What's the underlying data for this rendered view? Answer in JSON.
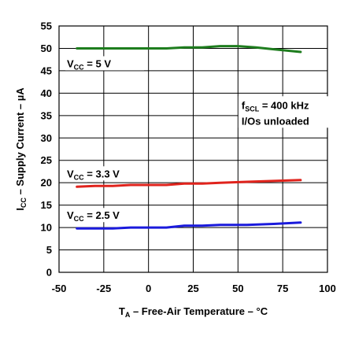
{
  "chart_data": {
    "type": "line",
    "xlabel": {
      "main": "T",
      "sub": "A",
      "rest": " – Free-Air Temperature – °C"
    },
    "ylabel": {
      "main": "I",
      "sub": "CC",
      "rest": " – Supply Current – µA"
    },
    "xlim": [
      -50,
      100
    ],
    "ylim": [
      0,
      55
    ],
    "xticks": [
      -50,
      -25,
      0,
      25,
      50,
      75,
      100
    ],
    "yticks": [
      0,
      5,
      10,
      15,
      20,
      25,
      30,
      35,
      40,
      45,
      50,
      55
    ],
    "grid": true,
    "series": [
      {
        "name": {
          "main": "V",
          "sub": "CC",
          "rest": " = 5 V"
        },
        "color": "#1e7d1e",
        "points": [
          [
            -40,
            50
          ],
          [
            -20,
            50
          ],
          [
            0,
            50
          ],
          [
            10,
            50
          ],
          [
            20,
            50.2
          ],
          [
            30,
            50.2
          ],
          [
            40,
            50.5
          ],
          [
            50,
            50.5
          ],
          [
            60,
            50.2
          ],
          [
            70,
            49.8
          ],
          [
            85,
            49.2
          ]
        ]
      },
      {
        "name": {
          "main": "V",
          "sub": "CC",
          "rest": " = 3.3 V"
        },
        "color": "#e0231c",
        "points": [
          [
            -40,
            19.1
          ],
          [
            -30,
            19.3
          ],
          [
            -20,
            19.3
          ],
          [
            -10,
            19.5
          ],
          [
            0,
            19.5
          ],
          [
            10,
            19.5
          ],
          [
            20,
            19.8
          ],
          [
            30,
            19.8
          ],
          [
            40,
            20
          ],
          [
            55,
            20.2
          ],
          [
            70,
            20.4
          ],
          [
            85,
            20.6
          ]
        ]
      },
      {
        "name": {
          "main": "V",
          "sub": "CC",
          "rest": " = 2.5 V"
        },
        "color": "#1a1adc",
        "points": [
          [
            -40,
            9.8
          ],
          [
            -20,
            9.8
          ],
          [
            -10,
            10
          ],
          [
            0,
            10
          ],
          [
            10,
            10
          ],
          [
            20,
            10.4
          ],
          [
            30,
            10.4
          ],
          [
            40,
            10.6
          ],
          [
            55,
            10.6
          ],
          [
            70,
            10.8
          ],
          [
            85,
            11.1
          ]
        ]
      }
    ],
    "annotation": {
      "line1": {
        "main": "f",
        "sub": "SCL",
        "rest": " = 400 kHz"
      },
      "line2": "I/Os unloaded"
    }
  }
}
